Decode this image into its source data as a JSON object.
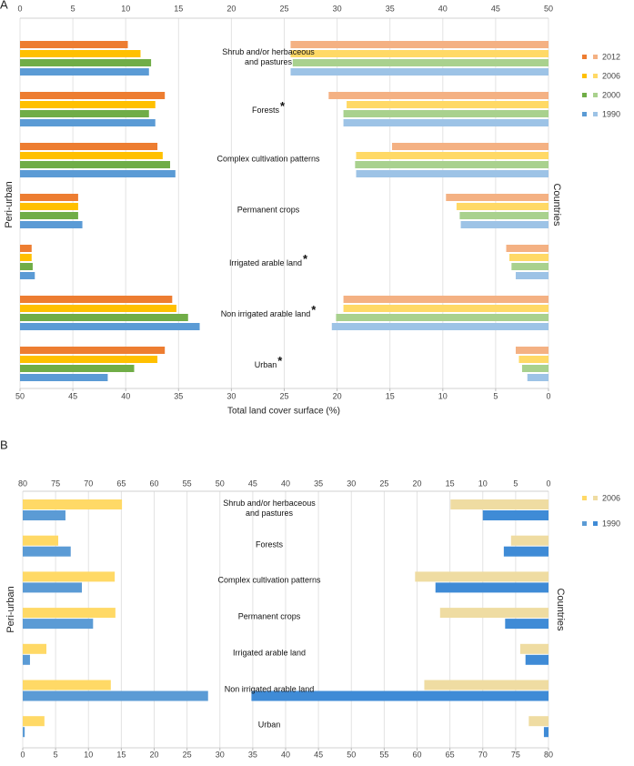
{
  "chart_data": [
    {
      "type": "bar",
      "panel_label": "A",
      "categories": [
        "Shrub and/or herbaceous\nand pastures",
        "Forests",
        "Complex cultivation patterns",
        "Permanent crops",
        "Irrigated arable land",
        "Non irrigated arable land",
        "Urban"
      ],
      "significance": [
        null,
        "*",
        null,
        null,
        "*",
        "*",
        "*"
      ],
      "series": [
        {
          "name": "2012",
          "color": "#ed7d31",
          "countries_color": "#f4b183",
          "values": [
            10.2,
            13.7,
            13.0,
            5.5,
            1.1,
            14.4,
            13.7
          ],
          "countries_values": [
            24.4,
            20.8,
            14.8,
            9.7,
            4.0,
            19.4,
            3.1
          ]
        },
        {
          "name": "2006",
          "color": "#ffc000",
          "countries_color": "#ffd966",
          "values": [
            11.4,
            12.8,
            13.5,
            5.5,
            1.1,
            14.8,
            13.0
          ],
          "countries_values": [
            24.4,
            19.1,
            18.2,
            8.7,
            3.7,
            19.4,
            2.8
          ]
        },
        {
          "name": "2000",
          "color": "#70ad47",
          "countries_color": "#a9d18e",
          "values": [
            12.4,
            12.2,
            14.2,
            5.5,
            1.2,
            15.9,
            10.8
          ],
          "countries_values": [
            24.2,
            19.4,
            18.3,
            8.4,
            3.5,
            20.1,
            2.5
          ]
        },
        {
          "name": "1990",
          "color": "#5b9bd5",
          "countries_color": "#9dc3e6",
          "values": [
            12.2,
            12.8,
            14.7,
            5.9,
            1.4,
            17.0,
            8.3
          ],
          "countries_values": [
            24.4,
            19.4,
            18.2,
            8.3,
            3.1,
            20.5,
            2.0
          ]
        }
      ],
      "peri_urban_axis": "x",
      "xlim": [
        0,
        50
      ],
      "xticks": [
        0,
        5,
        10,
        15,
        20,
        25,
        30,
        35,
        40,
        45,
        50
      ],
      "x2lim": [
        50,
        0
      ],
      "x2ticks": [
        50,
        45,
        40,
        35,
        30,
        25,
        20,
        15,
        10,
        5,
        0
      ],
      "x_label": "Total land cover surface (%)",
      "left_label": "Peri-urban",
      "right_label": "Countries",
      "grid": true
    },
    {
      "type": "bar",
      "panel_label": "B",
      "categories": [
        "Shrub and/or herbaceous\nand pastures",
        "Forests",
        "Complex cultivation patterns",
        "Permanent crops",
        "Irrigated arable land",
        "Non irrigated arable land",
        "Urban"
      ],
      "series": [
        {
          "name": "2006",
          "color": "#ffd966",
          "countries_color": "#efdca2",
          "values": [
            15.1,
            5.4,
            14.0,
            14.1,
            3.6,
            13.4,
            3.3
          ],
          "countries_values": [
            14.9,
            5.7,
            20.3,
            16.5,
            4.3,
            18.9,
            3.0
          ]
        },
        {
          "name": "1990",
          "color": "#5b9bd5",
          "countries_color": "#3f8bd6",
          "values": [
            6.5,
            7.3,
            9.0,
            10.7,
            1.1,
            28.2,
            0.3
          ],
          "countries_values": [
            10.0,
            6.8,
            17.2,
            6.6,
            3.5,
            45.2,
            0.7
          ]
        }
      ],
      "peri_urban_axis": "x2",
      "xlim": [
        80,
        0
      ],
      "xticks": [
        80,
        75,
        70,
        65,
        60,
        55,
        50,
        45,
        40,
        35,
        30,
        25,
        20,
        15,
        10,
        5,
        0
      ],
      "x2lim": [
        0,
        80
      ],
      "x2ticks": [
        0,
        5,
        10,
        15,
        20,
        25,
        30,
        35,
        40,
        45,
        50,
        55,
        60,
        65,
        70,
        75,
        80
      ],
      "left_label": "Peri-urban",
      "right_label": "Countries",
      "grid": true
    }
  ]
}
